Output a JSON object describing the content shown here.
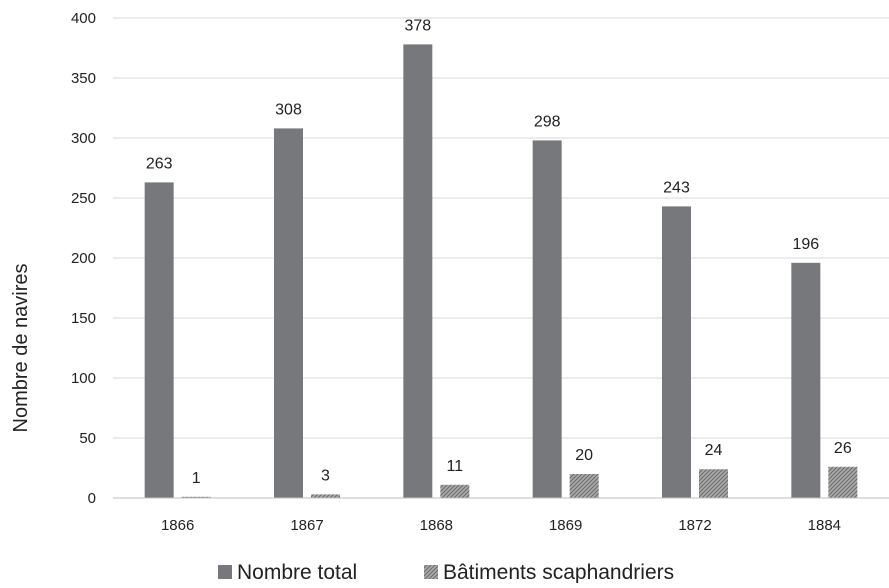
{
  "chart_data": {
    "type": "bar",
    "title": "",
    "xlabel": "",
    "ylabel": "Nombre de navires",
    "categories": [
      "1866",
      "1867",
      "1868",
      "1869",
      "1872",
      "1884"
    ],
    "ylim": [
      0,
      400
    ],
    "yticks": [
      0,
      50,
      100,
      150,
      200,
      250,
      300,
      350,
      400
    ],
    "grid": true,
    "legend_position": "bottom",
    "series": [
      {
        "name": "Nombre total",
        "values": [
          263,
          308,
          378,
          298,
          243,
          196
        ],
        "color": "#77787b",
        "pattern": "solid"
      },
      {
        "name": "Bâtiments scaphandriers",
        "values": [
          1,
          3,
          11,
          20,
          24,
          26
        ],
        "color": "#8e8e8e",
        "pattern": "hatched"
      }
    ]
  }
}
